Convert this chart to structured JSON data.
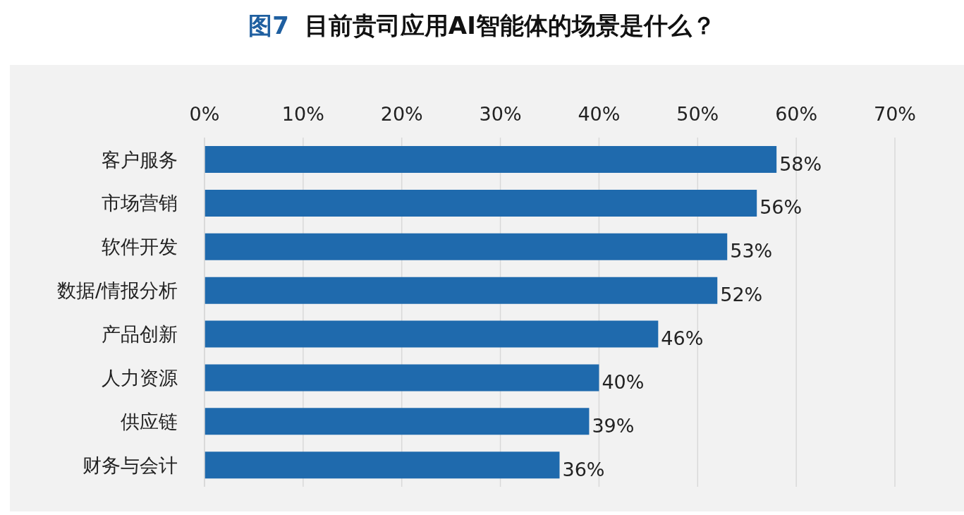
{
  "chart_data": {
    "type": "bar",
    "orientation": "horizontal",
    "title": "图7 目前贵司应用AI智能体的场景是什么？",
    "categories": [
      "客户服务",
      "市场营销",
      "软件开发",
      "数据/情报分析",
      "产品创新",
      "人力资源",
      "供应链",
      "财务与会计"
    ],
    "values": [
      58,
      56,
      53,
      52,
      46,
      40,
      39,
      36
    ],
    "value_labels": [
      "58%",
      "56%",
      "53%",
      "52%",
      "46%",
      "40%",
      "39%",
      "36%"
    ],
    "color": "#1f6aad",
    "xlim": [
      0,
      70
    ],
    "xticks": [
      {
        "value": 0,
        "label": "0%"
      },
      {
        "value": 10,
        "label": "10%"
      },
      {
        "value": 20,
        "label": "20%"
      },
      {
        "value": 30,
        "label": "30%"
      },
      {
        "value": 40,
        "label": "40%"
      },
      {
        "value": 50,
        "label": "50%"
      },
      {
        "value": 60,
        "label": "60%"
      },
      {
        "value": 70,
        "label": "70%"
      }
    ],
    "grid": "x"
  }
}
